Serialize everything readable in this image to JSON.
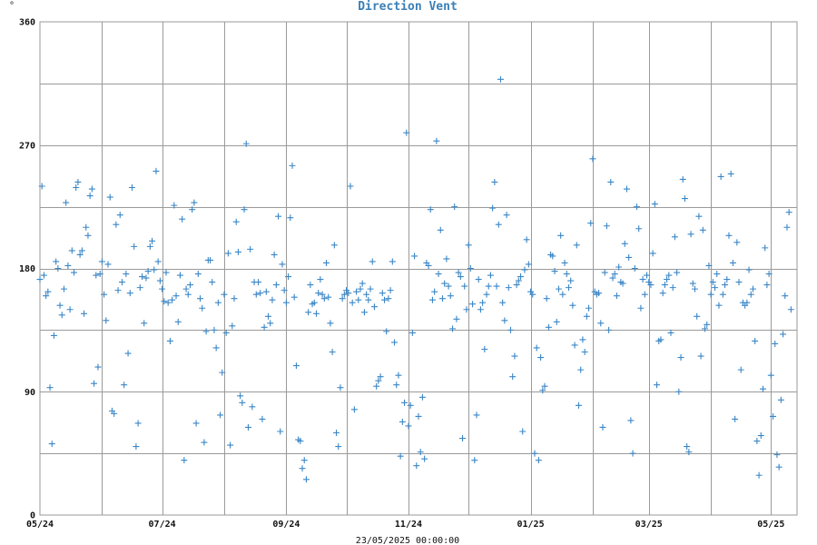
{
  "chart_data": {
    "type": "scatter",
    "title": "Direction Vent",
    "ylabel": "°",
    "xlabel": "23/05/2025 00:00:00",
    "ylim": [
      0,
      360
    ],
    "yticks": [
      0,
      90,
      180,
      270,
      360
    ],
    "xticks": [
      "05/24",
      "07/24",
      "09/24",
      "11/24",
      "01/25",
      "03/25",
      "05/25"
    ],
    "grid": true,
    "color": "#3a86c6",
    "x_start": "2024-05-24",
    "x_end": "2025-06-06",
    "x_tick_dates": [
      "2024-05-24",
      "2024-06-24",
      "2024-07-24",
      "2024-08-24",
      "2024-09-24",
      "2024-10-24",
      "2024-11-24",
      "2024-12-24",
      "2025-01-24",
      "2025-02-24",
      "2025-03-24",
      "2025-04-24",
      "2025-05-24"
    ],
    "points": [
      [
        "2024-05-24",
        172
      ],
      [
        "2024-05-25",
        240
      ],
      [
        "2024-05-26",
        175
      ],
      [
        "2024-05-27",
        160
      ],
      [
        "2024-05-28",
        163
      ],
      [
        "2024-05-29",
        93
      ],
      [
        "2024-05-30",
        52
      ],
      [
        "2024-05-31",
        131
      ],
      [
        "2024-06-01",
        185
      ],
      [
        "2024-06-02",
        180
      ],
      [
        "2024-06-03",
        153
      ],
      [
        "2024-06-04",
        146
      ],
      [
        "2024-06-05",
        165
      ],
      [
        "2024-06-06",
        228
      ],
      [
        "2024-06-07",
        182
      ],
      [
        "2024-06-08",
        150
      ],
      [
        "2024-06-09",
        193
      ],
      [
        "2024-06-10",
        177
      ],
      [
        "2024-06-11",
        239
      ],
      [
        "2024-06-12",
        243
      ],
      [
        "2024-06-13",
        190
      ],
      [
        "2024-06-14",
        193
      ],
      [
        "2024-06-15",
        147
      ],
      [
        "2024-06-16",
        210
      ],
      [
        "2024-06-17",
        204
      ],
      [
        "2024-06-18",
        233
      ],
      [
        "2024-06-19",
        238
      ],
      [
        "2024-06-20",
        96
      ],
      [
        "2024-06-21",
        175
      ],
      [
        "2024-06-22",
        108
      ],
      [
        "2024-06-23",
        176
      ],
      [
        "2024-06-24",
        185
      ],
      [
        "2024-06-25",
        161
      ],
      [
        "2024-06-26",
        142
      ],
      [
        "2024-06-27",
        183
      ],
      [
        "2024-06-28",
        232
      ],
      [
        "2024-06-29",
        76
      ],
      [
        "2024-06-30",
        74
      ],
      [
        "2024-07-01",
        212
      ],
      [
        "2024-07-02",
        164
      ],
      [
        "2024-07-03",
        219
      ],
      [
        "2024-07-04",
        170
      ],
      [
        "2024-07-05",
        95
      ],
      [
        "2024-07-06",
        176
      ],
      [
        "2024-07-07",
        118
      ],
      [
        "2024-07-08",
        162
      ],
      [
        "2024-07-09",
        239
      ],
      [
        "2024-07-10",
        196
      ],
      [
        "2024-07-11",
        50
      ],
      [
        "2024-07-12",
        67
      ],
      [
        "2024-07-13",
        166
      ],
      [
        "2024-07-14",
        174
      ],
      [
        "2024-07-15",
        140
      ],
      [
        "2024-07-16",
        173
      ],
      [
        "2024-07-17",
        178
      ],
      [
        "2024-07-18",
        196
      ],
      [
        "2024-07-19",
        200
      ],
      [
        "2024-07-20",
        179
      ],
      [
        "2024-07-21",
        251
      ],
      [
        "2024-07-22",
        185
      ],
      [
        "2024-07-23",
        171
      ],
      [
        "2024-07-24",
        165
      ],
      [
        "2024-07-25",
        156
      ],
      [
        "2024-07-26",
        177
      ],
      [
        "2024-07-27",
        155
      ],
      [
        "2024-07-28",
        127
      ],
      [
        "2024-07-29",
        157
      ],
      [
        "2024-07-30",
        226
      ],
      [
        "2024-07-31",
        160
      ],
      [
        "2024-08-01",
        141
      ],
      [
        "2024-08-02",
        175
      ],
      [
        "2024-08-03",
        216
      ],
      [
        "2024-08-04",
        40
      ],
      [
        "2024-08-05",
        165
      ],
      [
        "2024-08-06",
        161
      ],
      [
        "2024-08-07",
        168
      ],
      [
        "2024-08-08",
        223
      ],
      [
        "2024-08-09",
        228
      ],
      [
        "2024-08-10",
        67
      ],
      [
        "2024-08-11",
        176
      ],
      [
        "2024-08-12",
        158
      ],
      [
        "2024-08-13",
        151
      ],
      [
        "2024-08-14",
        53
      ],
      [
        "2024-08-15",
        134
      ],
      [
        "2024-08-16",
        186
      ],
      [
        "2024-08-17",
        186
      ],
      [
        "2024-08-18",
        170
      ],
      [
        "2024-08-19",
        135
      ],
      [
        "2024-08-20",
        122
      ],
      [
        "2024-08-21",
        155
      ],
      [
        "2024-08-22",
        73
      ],
      [
        "2024-08-23",
        104
      ],
      [
        "2024-08-24",
        161
      ],
      [
        "2024-08-25",
        133
      ],
      [
        "2024-08-26",
        191
      ],
      [
        "2024-08-27",
        51
      ],
      [
        "2024-08-28",
        138
      ],
      [
        "2024-08-29",
        158
      ],
      [
        "2024-08-30",
        214
      ],
      [
        "2024-08-31",
        192
      ],
      [
        "2024-09-01",
        87
      ],
      [
        "2024-09-02",
        82
      ],
      [
        "2024-09-03",
        223
      ],
      [
        "2024-09-04",
        271
      ],
      [
        "2024-09-05",
        64
      ],
      [
        "2024-09-06",
        194
      ],
      [
        "2024-09-07",
        79
      ],
      [
        "2024-09-08",
        170
      ],
      [
        "2024-09-09",
        161
      ],
      [
        "2024-09-10",
        170
      ],
      [
        "2024-09-11",
        162
      ],
      [
        "2024-09-12",
        70
      ],
      [
        "2024-09-13",
        137
      ],
      [
        "2024-09-14",
        163
      ],
      [
        "2024-09-15",
        145
      ],
      [
        "2024-09-16",
        140
      ],
      [
        "2024-09-17",
        157
      ],
      [
        "2024-09-18",
        190
      ],
      [
        "2024-09-19",
        168
      ],
      [
        "2024-09-20",
        218
      ],
      [
        "2024-09-21",
        61
      ],
      [
        "2024-09-22",
        183
      ],
      [
        "2024-09-23",
        164
      ],
      [
        "2024-09-24",
        155
      ],
      [
        "2024-09-25",
        174
      ],
      [
        "2024-09-26",
        217
      ],
      [
        "2024-09-27",
        255
      ],
      [
        "2024-09-28",
        159
      ],
      [
        "2024-09-29",
        109
      ],
      [
        "2024-09-30",
        55
      ],
      [
        "2024-10-01",
        54
      ],
      [
        "2024-10-02",
        34
      ],
      [
        "2024-10-03",
        40
      ],
      [
        "2024-10-04",
        26
      ],
      [
        "2024-10-05",
        148
      ],
      [
        "2024-10-06",
        168
      ],
      [
        "2024-10-07",
        154
      ],
      [
        "2024-10-08",
        155
      ],
      [
        "2024-10-09",
        147
      ],
      [
        "2024-10-10",
        162
      ],
      [
        "2024-10-11",
        172
      ],
      [
        "2024-10-12",
        161
      ],
      [
        "2024-10-13",
        158
      ],
      [
        "2024-10-14",
        184
      ],
      [
        "2024-10-15",
        159
      ],
      [
        "2024-10-16",
        140
      ],
      [
        "2024-10-17",
        119
      ],
      [
        "2024-10-18",
        197
      ],
      [
        "2024-10-19",
        60
      ],
      [
        "2024-10-20",
        50
      ],
      [
        "2024-10-21",
        93
      ],
      [
        "2024-10-22",
        158
      ],
      [
        "2024-10-23",
        161
      ],
      [
        "2024-10-24",
        164
      ],
      [
        "2024-10-25",
        162
      ],
      [
        "2024-10-26",
        240
      ],
      [
        "2024-10-27",
        155
      ],
      [
        "2024-10-28",
        77
      ],
      [
        "2024-10-29",
        163
      ],
      [
        "2024-10-30",
        157
      ],
      [
        "2024-10-31",
        165
      ],
      [
        "2024-11-01",
        169
      ],
      [
        "2024-11-02",
        148
      ],
      [
        "2024-11-03",
        161
      ],
      [
        "2024-11-04",
        157
      ],
      [
        "2024-11-05",
        165
      ],
      [
        "2024-11-06",
        185
      ],
      [
        "2024-11-07",
        152
      ],
      [
        "2024-11-08",
        94
      ],
      [
        "2024-11-09",
        98
      ],
      [
        "2024-11-10",
        101
      ],
      [
        "2024-11-11",
        162
      ],
      [
        "2024-11-12",
        157
      ],
      [
        "2024-11-13",
        134
      ],
      [
        "2024-11-14",
        158
      ],
      [
        "2024-11-15",
        164
      ],
      [
        "2024-11-16",
        185
      ],
      [
        "2024-11-17",
        126
      ],
      [
        "2024-11-18",
        95
      ],
      [
        "2024-11-19",
        102
      ],
      [
        "2024-11-20",
        43
      ],
      [
        "2024-11-21",
        68
      ],
      [
        "2024-11-22",
        82
      ],
      [
        "2024-11-23",
        279
      ],
      [
        "2024-11-24",
        65
      ],
      [
        "2024-11-25",
        80
      ],
      [
        "2024-11-26",
        133
      ],
      [
        "2024-11-27",
        189
      ],
      [
        "2024-11-28",
        36
      ],
      [
        "2024-11-29",
        72
      ],
      [
        "2024-11-30",
        46
      ],
      [
        "2024-12-01",
        86
      ],
      [
        "2024-12-02",
        41
      ],
      [
        "2024-12-03",
        184
      ],
      [
        "2024-12-04",
        182
      ],
      [
        "2024-12-05",
        223
      ],
      [
        "2024-12-06",
        157
      ],
      [
        "2024-12-07",
        163
      ],
      [
        "2024-12-08",
        273
      ],
      [
        "2024-12-09",
        176
      ],
      [
        "2024-12-10",
        208
      ],
      [
        "2024-12-11",
        158
      ],
      [
        "2024-12-12",
        169
      ],
      [
        "2024-12-13",
        187
      ],
      [
        "2024-12-14",
        167
      ],
      [
        "2024-12-15",
        160
      ],
      [
        "2024-12-16",
        136
      ],
      [
        "2024-12-17",
        225
      ],
      [
        "2024-12-18",
        143
      ],
      [
        "2024-12-19",
        177
      ],
      [
        "2024-12-20",
        174
      ],
      [
        "2024-12-21",
        56
      ],
      [
        "2024-12-22",
        167
      ],
      [
        "2024-12-23",
        150
      ],
      [
        "2024-12-24",
        197
      ],
      [
        "2024-12-25",
        180
      ],
      [
        "2024-12-26",
        154
      ],
      [
        "2024-12-27",
        40
      ],
      [
        "2024-12-28",
        73
      ],
      [
        "2024-12-29",
        172
      ],
      [
        "2024-12-30",
        150
      ],
      [
        "2024-12-31",
        155
      ],
      [
        "2025-01-01",
        121
      ],
      [
        "2025-01-02",
        161
      ],
      [
        "2025-01-03",
        167
      ],
      [
        "2025-01-04",
        175
      ],
      [
        "2025-01-05",
        224
      ],
      [
        "2025-01-06",
        243
      ],
      [
        "2025-01-07",
        167
      ],
      [
        "2025-01-08",
        212
      ],
      [
        "2025-01-09",
        318
      ],
      [
        "2025-01-10",
        155
      ],
      [
        "2025-01-11",
        142
      ],
      [
        "2025-01-12",
        219
      ],
      [
        "2025-01-13",
        166
      ],
      [
        "2025-01-14",
        135
      ],
      [
        "2025-01-15",
        101
      ],
      [
        "2025-01-16",
        116
      ],
      [
        "2025-01-17",
        168
      ],
      [
        "2025-01-18",
        171
      ],
      [
        "2025-01-19",
        174
      ],
      [
        "2025-01-20",
        61
      ],
      [
        "2025-01-21",
        179
      ],
      [
        "2025-01-22",
        201
      ],
      [
        "2025-01-23",
        183
      ],
      [
        "2025-01-24",
        163
      ],
      [
        "2025-01-25",
        161
      ],
      [
        "2025-01-26",
        45
      ],
      [
        "2025-01-27",
        122
      ],
      [
        "2025-01-28",
        40
      ],
      [
        "2025-01-29",
        115
      ],
      [
        "2025-01-30",
        91
      ],
      [
        "2025-01-31",
        94
      ],
      [
        "2025-02-01",
        158
      ],
      [
        "2025-02-02",
        137
      ],
      [
        "2025-02-03",
        190
      ],
      [
        "2025-02-04",
        189
      ],
      [
        "2025-02-05",
        178
      ],
      [
        "2025-02-06",
        141
      ],
      [
        "2025-02-07",
        165
      ],
      [
        "2025-02-08",
        204
      ],
      [
        "2025-02-09",
        161
      ],
      [
        "2025-02-10",
        184
      ],
      [
        "2025-02-11",
        176
      ],
      [
        "2025-02-12",
        166
      ],
      [
        "2025-02-13",
        171
      ],
      [
        "2025-02-14",
        153
      ],
      [
        "2025-02-15",
        124
      ],
      [
        "2025-02-16",
        197
      ],
      [
        "2025-02-17",
        80
      ],
      [
        "2025-02-18",
        106
      ],
      [
        "2025-02-19",
        128
      ],
      [
        "2025-02-20",
        119
      ],
      [
        "2025-02-21",
        145
      ],
      [
        "2025-02-22",
        151
      ],
      [
        "2025-02-23",
        213
      ],
      [
        "2025-02-24",
        260
      ],
      [
        "2025-02-25",
        163
      ],
      [
        "2025-02-26",
        161
      ],
      [
        "2025-02-27",
        162
      ],
      [
        "2025-02-28",
        140
      ],
      [
        "2025-03-01",
        64
      ],
      [
        "2025-03-02",
        177
      ],
      [
        "2025-03-03",
        211
      ],
      [
        "2025-03-04",
        135
      ],
      [
        "2025-03-05",
        243
      ],
      [
        "2025-03-06",
        173
      ],
      [
        "2025-03-07",
        176
      ],
      [
        "2025-03-08",
        160
      ],
      [
        "2025-03-09",
        181
      ],
      [
        "2025-03-10",
        170
      ],
      [
        "2025-03-11",
        169
      ],
      [
        "2025-03-12",
        198
      ],
      [
        "2025-03-13",
        238
      ],
      [
        "2025-03-14",
        188
      ],
      [
        "2025-03-15",
        69
      ],
      [
        "2025-03-16",
        45
      ],
      [
        "2025-03-17",
        180
      ],
      [
        "2025-03-18",
        225
      ],
      [
        "2025-03-19",
        209
      ],
      [
        "2025-03-20",
        151
      ],
      [
        "2025-03-21",
        172
      ],
      [
        "2025-03-22",
        161
      ],
      [
        "2025-03-23",
        175
      ],
      [
        "2025-03-24",
        170
      ],
      [
        "2025-03-25",
        168
      ],
      [
        "2025-03-26",
        191
      ],
      [
        "2025-03-27",
        227
      ],
      [
        "2025-03-28",
        95
      ],
      [
        "2025-03-29",
        127
      ],
      [
        "2025-03-30",
        128
      ],
      [
        "2025-03-31",
        162
      ],
      [
        "2025-04-01",
        168
      ],
      [
        "2025-04-02",
        172
      ],
      [
        "2025-04-03",
        175
      ],
      [
        "2025-04-04",
        133
      ],
      [
        "2025-04-05",
        166
      ],
      [
        "2025-04-06",
        203
      ],
      [
        "2025-04-07",
        177
      ],
      [
        "2025-04-08",
        90
      ],
      [
        "2025-04-09",
        115
      ],
      [
        "2025-04-10",
        245
      ],
      [
        "2025-04-11",
        231
      ],
      [
        "2025-04-12",
        50
      ],
      [
        "2025-04-13",
        46
      ],
      [
        "2025-04-14",
        205
      ],
      [
        "2025-04-15",
        169
      ],
      [
        "2025-04-16",
        165
      ],
      [
        "2025-04-17",
        145
      ],
      [
        "2025-04-18",
        218
      ],
      [
        "2025-04-19",
        116
      ],
      [
        "2025-04-20",
        208
      ],
      [
        "2025-04-21",
        136
      ],
      [
        "2025-04-22",
        139
      ],
      [
        "2025-04-23",
        182
      ],
      [
        "2025-04-24",
        161
      ],
      [
        "2025-04-25",
        170
      ],
      [
        "2025-04-26",
        166
      ],
      [
        "2025-04-27",
        176
      ],
      [
        "2025-04-28",
        153
      ],
      [
        "2025-04-29",
        247
      ],
      [
        "2025-04-30",
        161
      ],
      [
        "2025-05-01",
        168
      ],
      [
        "2025-05-02",
        172
      ],
      [
        "2025-05-03",
        204
      ],
      [
        "2025-05-04",
        249
      ],
      [
        "2025-05-05",
        184
      ],
      [
        "2025-05-06",
        70
      ],
      [
        "2025-05-07",
        199
      ],
      [
        "2025-05-08",
        170
      ],
      [
        "2025-05-09",
        106
      ],
      [
        "2025-05-10",
        155
      ],
      [
        "2025-05-11",
        153
      ],
      [
        "2025-05-12",
        155
      ],
      [
        "2025-05-13",
        179
      ],
      [
        "2025-05-14",
        161
      ],
      [
        "2025-05-15",
        165
      ],
      [
        "2025-05-16",
        127
      ],
      [
        "2025-05-17",
        54
      ],
      [
        "2025-05-18",
        29
      ],
      [
        "2025-05-19",
        58
      ],
      [
        "2025-05-20",
        92
      ],
      [
        "2025-05-21",
        195
      ],
      [
        "2025-05-22",
        168
      ],
      [
        "2025-05-23",
        176
      ],
      [
        "2025-05-24",
        102
      ],
      [
        "2025-05-25",
        72
      ],
      [
        "2025-05-26",
        125
      ],
      [
        "2025-05-27",
        44
      ],
      [
        "2025-05-28",
        35
      ],
      [
        "2025-05-29",
        84
      ],
      [
        "2025-05-30",
        132
      ],
      [
        "2025-05-31",
        160
      ],
      [
        "2025-06-01",
        210
      ],
      [
        "2025-06-02",
        221
      ],
      [
        "2025-06-03",
        150
      ]
    ]
  }
}
